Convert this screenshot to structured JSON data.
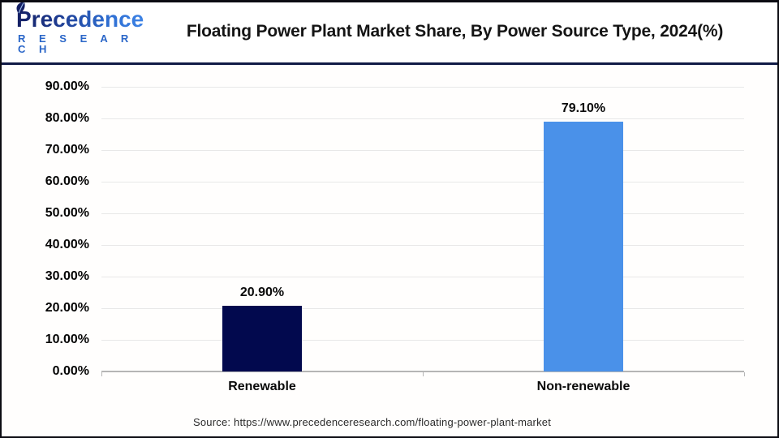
{
  "header": {
    "logo_brand": "Precedence",
    "logo_sub": "R E S E A R C H",
    "title": "Floating Power Plant Market Share, By Power Source Type, 2024(%)"
  },
  "chart_data": {
    "type": "bar",
    "title": "Floating Power Plant Market Share, By Power Source Type, 2024(%)",
    "categories": [
      "Renewable",
      "Non-renewable"
    ],
    "values": [
      20.9,
      79.1
    ],
    "value_labels": [
      "20.90%",
      "79.10%"
    ],
    "bar_colors": [
      "#02094e",
      "#4a91e9"
    ],
    "xlabel": "",
    "ylabel": "",
    "ylim": [
      0,
      90
    ],
    "ytick_step": 10,
    "ytick_labels": [
      "0.00%",
      "10.00%",
      "20.00%",
      "30.00%",
      "40.00%",
      "50.00%",
      "60.00%",
      "70.00%",
      "80.00%",
      "90.00%"
    ],
    "grid": true,
    "legend": "none",
    "colors": {
      "grid": "#e8e8e8",
      "axis": "#b5b5b5",
      "navy": "#02094e",
      "blue": "#4a91e9"
    }
  },
  "footer": {
    "source": "Source: https://www.precedenceresearch.com/floating-power-plant-market"
  }
}
